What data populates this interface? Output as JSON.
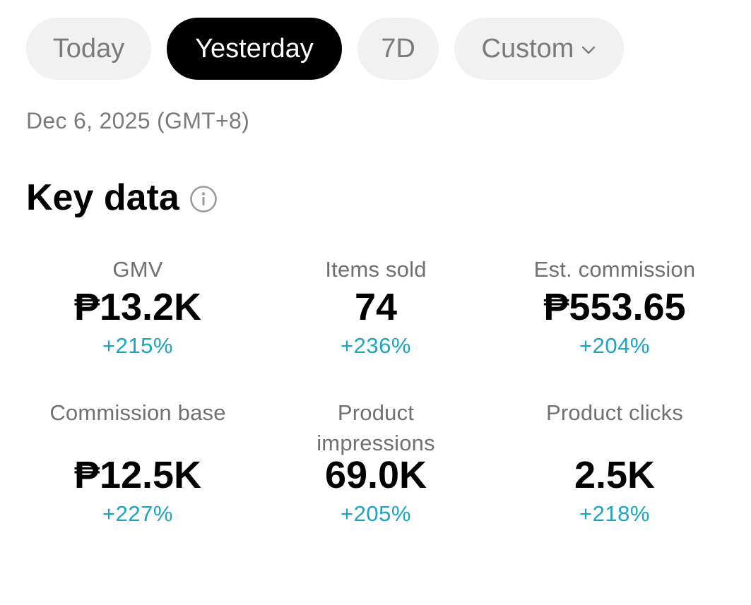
{
  "date_filter": {
    "chips": [
      {
        "label": "Today",
        "active": false
      },
      {
        "label": "Yesterday",
        "active": true
      },
      {
        "label": "7D",
        "active": false
      },
      {
        "label": "Custom",
        "active": false
      }
    ]
  },
  "date_line": "Dec 6, 2025 (GMT+8)",
  "section": {
    "title": "Key data",
    "icon": "info-icon"
  },
  "metrics": [
    {
      "label": "GMV",
      "value": "₱13.2K",
      "change": "+215%"
    },
    {
      "label": "Items sold",
      "value": "74",
      "change": "+236%"
    },
    {
      "label": "Est. commission",
      "value": "₱553.65",
      "change": "+204%"
    },
    {
      "label": "Commission base",
      "value": "₱12.5K",
      "change": "+227%"
    },
    {
      "label": "Product impressions",
      "value": "69.0K",
      "change": "+205%"
    },
    {
      "label": "Product clicks",
      "value": "2.5K",
      "change": "+218%"
    }
  ],
  "colors": {
    "active_chip_bg": "#000000",
    "chip_bg": "#f1f1f1",
    "positive_change": "#1aa5c2",
    "muted_text": "#7a7a7a"
  }
}
